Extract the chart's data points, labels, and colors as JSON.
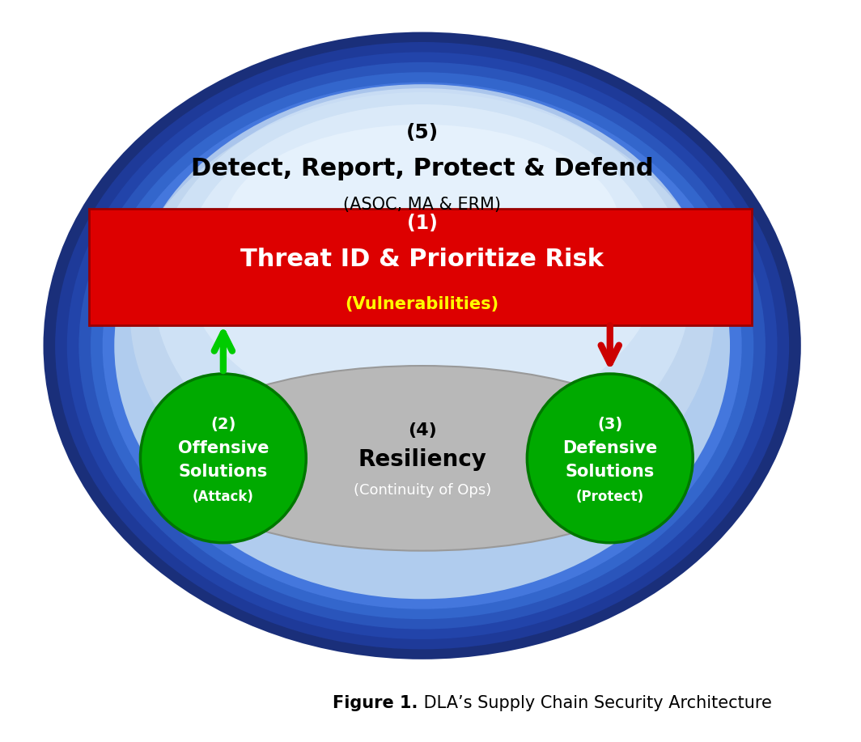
{
  "fig_width": 10.64,
  "fig_height": 9.17,
  "bg_color": "#ffffff",
  "xlim": [
    0,
    10.64
  ],
  "ylim": [
    0,
    9.17
  ],
  "label5_num": "(5)",
  "label5_main": "Detect, Report, Protect & Defend",
  "label5_sub": "(ASOC, MA & ERM)",
  "label1_num": "(1)",
  "label1_main": "Threat ID & Prioritize Risk",
  "label1_sub": "(Vulnerabilities)",
  "label2_num": "(2)",
  "label2_line1": "Offensive",
  "label2_line2": "Solutions",
  "label2_sub": "(Attack)",
  "label3_num": "(3)",
  "label3_line1": "Defensive",
  "label3_line2": "Solutions",
  "label3_sub": "(Protect)",
  "label4_num": "(4)",
  "label4_line1": "Resiliency",
  "label4_sub": "(Continuity of Ops)",
  "green_color": "#00aa00",
  "green_edge": "#007700",
  "caption_bold": "Figure 1.",
  "caption_normal": " DLA’s Supply Chain Security Architecture"
}
